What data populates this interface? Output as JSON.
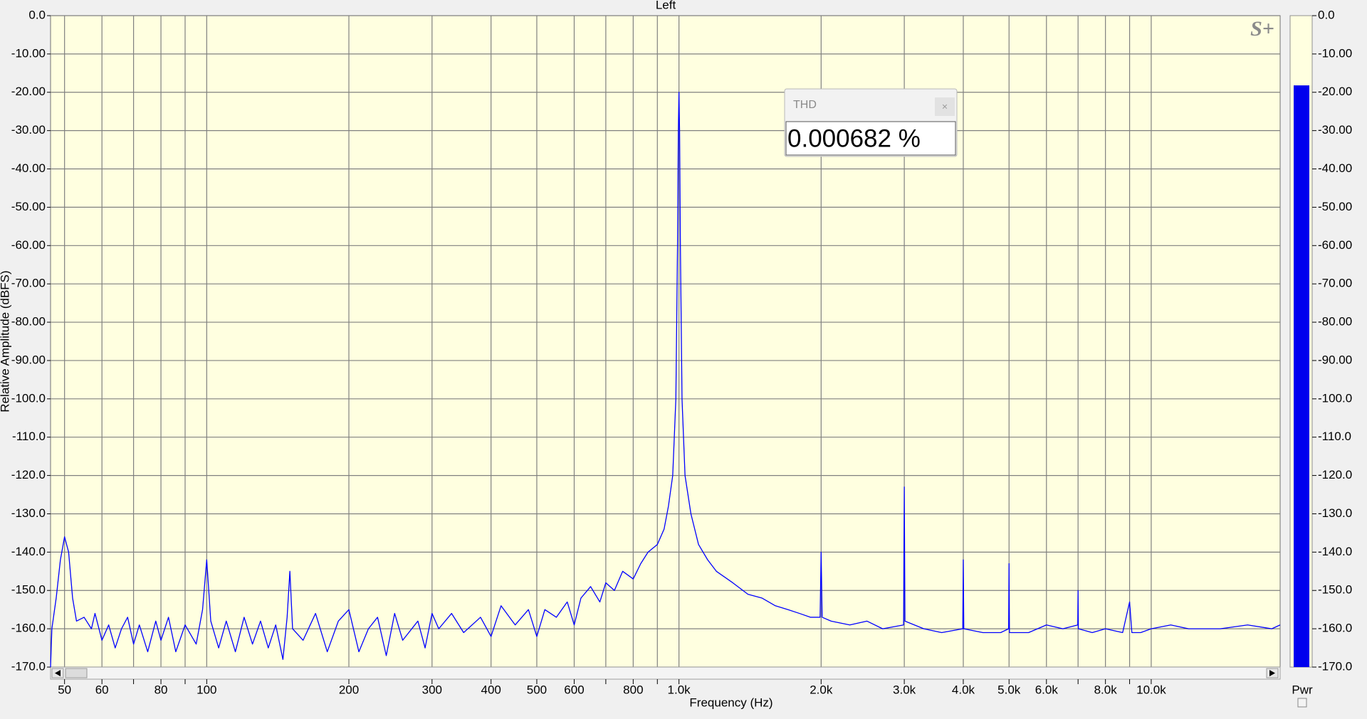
{
  "chart_data": {
    "type": "line",
    "title": "Left",
    "y_label": "Relative Amplitude (dBFS)",
    "x_label": "Frequency (Hz)",
    "logo": "S+",
    "color": "#0000ff",
    "x_scale": "log",
    "grid": true,
    "xlim": [
      46.7,
      18750
    ],
    "ylim": [
      -170,
      0
    ],
    "xticks": [
      50,
      60,
      80,
      100,
      200,
      300,
      400,
      500,
      600,
      800,
      {
        "value": 1000,
        "label": "1.0k"
      },
      {
        "value": 2000,
        "label": "2.0k"
      },
      {
        "value": 3000,
        "label": "3.0k"
      },
      {
        "value": 4000,
        "label": "4.0k"
      },
      {
        "value": 5000,
        "label": "5.0k"
      },
      {
        "value": 6000,
        "label": "6.0k"
      },
      {
        "value": 8000,
        "label": "8.0k"
      },
      {
        "value": 10000,
        "label": "10.0k"
      }
    ],
    "x_minor_ticks": [
      70,
      90,
      700,
      900,
      7000,
      9000
    ],
    "yticks": [
      {
        "value": 0,
        "label": "0.0"
      },
      {
        "value": -10,
        "label": "-10.00"
      },
      {
        "value": -20,
        "label": "-20.00"
      },
      {
        "value": -30,
        "label": "-30.00"
      },
      {
        "value": -40,
        "label": "-40.00"
      },
      {
        "value": -50,
        "label": "-50.00"
      },
      {
        "value": -60,
        "label": "-60.00"
      },
      {
        "value": -70,
        "label": "-70.00"
      },
      {
        "value": -80,
        "label": "-80.00"
      },
      {
        "value": -90,
        "label": "-90.00"
      },
      {
        "value": -100,
        "label": "-100.0"
      },
      {
        "value": -110,
        "label": "-110.0"
      },
      {
        "value": -120,
        "label": "-120.0"
      },
      {
        "value": -130,
        "label": "-130.0"
      },
      {
        "value": -140,
        "label": "-140.0"
      },
      {
        "value": -150,
        "label": "-150.0"
      },
      {
        "value": -160,
        "label": "-160.0"
      },
      {
        "value": -170,
        "label": "-170.0"
      }
    ],
    "x": [
      46.7,
      47,
      48,
      49,
      50,
      51,
      52,
      53,
      55,
      57,
      58,
      60,
      62,
      64,
      66,
      68,
      70,
      72,
      75,
      78,
      80,
      83,
      86,
      90,
      95,
      98,
      100,
      102,
      106,
      110,
      115,
      120,
      125,
      130,
      135,
      140,
      145,
      148,
      150,
      152,
      160,
      170,
      180,
      190,
      200,
      210,
      220,
      230,
      240,
      250,
      260,
      280,
      290,
      300,
      310,
      330,
      350,
      380,
      400,
      420,
      450,
      480,
      500,
      520,
      550,
      580,
      600,
      620,
      650,
      680,
      700,
      730,
      760,
      800,
      830,
      860,
      900,
      930,
      950,
      970,
      985,
      993,
      997,
      1000,
      1003,
      1007,
      1015,
      1030,
      1060,
      1100,
      1150,
      1200,
      1300,
      1400,
      1500,
      1600,
      1700,
      1800,
      1900,
      1990,
      2000,
      2010,
      2100,
      2300,
      2500,
      2700,
      2990,
      3000,
      3010,
      3300,
      3600,
      3990,
      4000,
      4010,
      4400,
      4800,
      4990,
      5000,
      5010,
      5500,
      6000,
      6500,
      6990,
      7000,
      7010,
      7500,
      8000,
      8700,
      9000,
      9100,
      9500,
      10000,
      11000,
      12000,
      14000,
      16000,
      18000,
      18750
    ],
    "values": [
      -170,
      -160,
      -152,
      -142,
      -136,
      -140,
      -152,
      -158,
      -157,
      -160,
      -156,
      -163,
      -159,
      -165,
      -160,
      -157,
      -164,
      -159,
      -166,
      -158,
      -163,
      -157,
      -166,
      -159,
      -164,
      -155,
      -142,
      -158,
      -165,
      -158,
      -166,
      -157,
      -164,
      -158,
      -165,
      -159,
      -168,
      -157,
      -145,
      -160,
      -163,
      -156,
      -166,
      -158,
      -155,
      -166,
      -160,
      -157,
      -167,
      -156,
      -163,
      -158,
      -165,
      -156,
      -160,
      -156,
      -161,
      -157,
      -162,
      -154,
      -159,
      -155,
      -162,
      -155,
      -157,
      -153,
      -159,
      -152,
      -149,
      -153,
      -148,
      -150,
      -145,
      -147,
      -143,
      -140,
      -138,
      -134,
      -128,
      -120,
      -100,
      -60,
      -30,
      -20,
      -30,
      -60,
      -100,
      -120,
      -130,
      -138,
      -142,
      -145,
      -148,
      -151,
      -152,
      -154,
      -155,
      -156,
      -157,
      -157,
      -140,
      -157,
      -158,
      -159,
      -158,
      -160,
      -159,
      -123,
      -158,
      -160,
      -161,
      -160,
      -142,
      -160,
      -161,
      -161,
      -160,
      -143,
      -161,
      -161,
      -159,
      -160,
      -159,
      -150,
      -160,
      -161,
      -160,
      -161,
      -153,
      -161,
      -161,
      -160,
      -159,
      -160,
      -160,
      -159,
      -160,
      -159
    ],
    "power_meter": {
      "label": "Pwr",
      "value": -18.2,
      "color": "#0000ee"
    },
    "readout": {
      "title": "THD",
      "value": "0.000682 %",
      "close": "×"
    }
  }
}
